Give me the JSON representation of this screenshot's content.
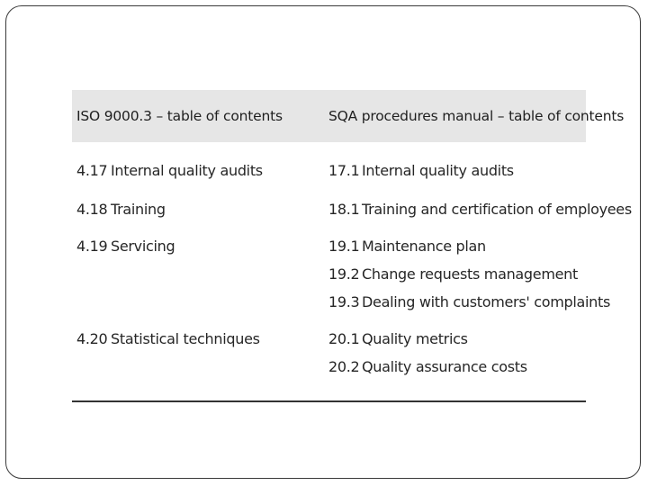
{
  "table": {
    "headers": {
      "left": "ISO 9000.3 – table of contents",
      "right": "SQA procedures manual – table of contents"
    },
    "iso_rows": [
      {
        "num": "4.17",
        "title": "Internal quality audits"
      },
      {
        "num": "4.18",
        "title": "Training"
      },
      {
        "num": "4.19",
        "title": "Servicing"
      },
      {
        "num": "4.20",
        "title": "Statistical techniques"
      }
    ],
    "sqa_rows": [
      {
        "num": "17.1",
        "title": "Internal quality audits"
      },
      {
        "num": "18.1",
        "title": "Training and certification of employees"
      },
      {
        "num": "19.1",
        "title": "Maintenance plan"
      },
      {
        "num": "19.2",
        "title": "Change requests management"
      },
      {
        "num": "19.3",
        "title": "Dealing with customers' complaints"
      },
      {
        "num": "20.1",
        "title": "Quality metrics"
      },
      {
        "num": "20.2",
        "title": "Quality assurance costs"
      }
    ]
  }
}
